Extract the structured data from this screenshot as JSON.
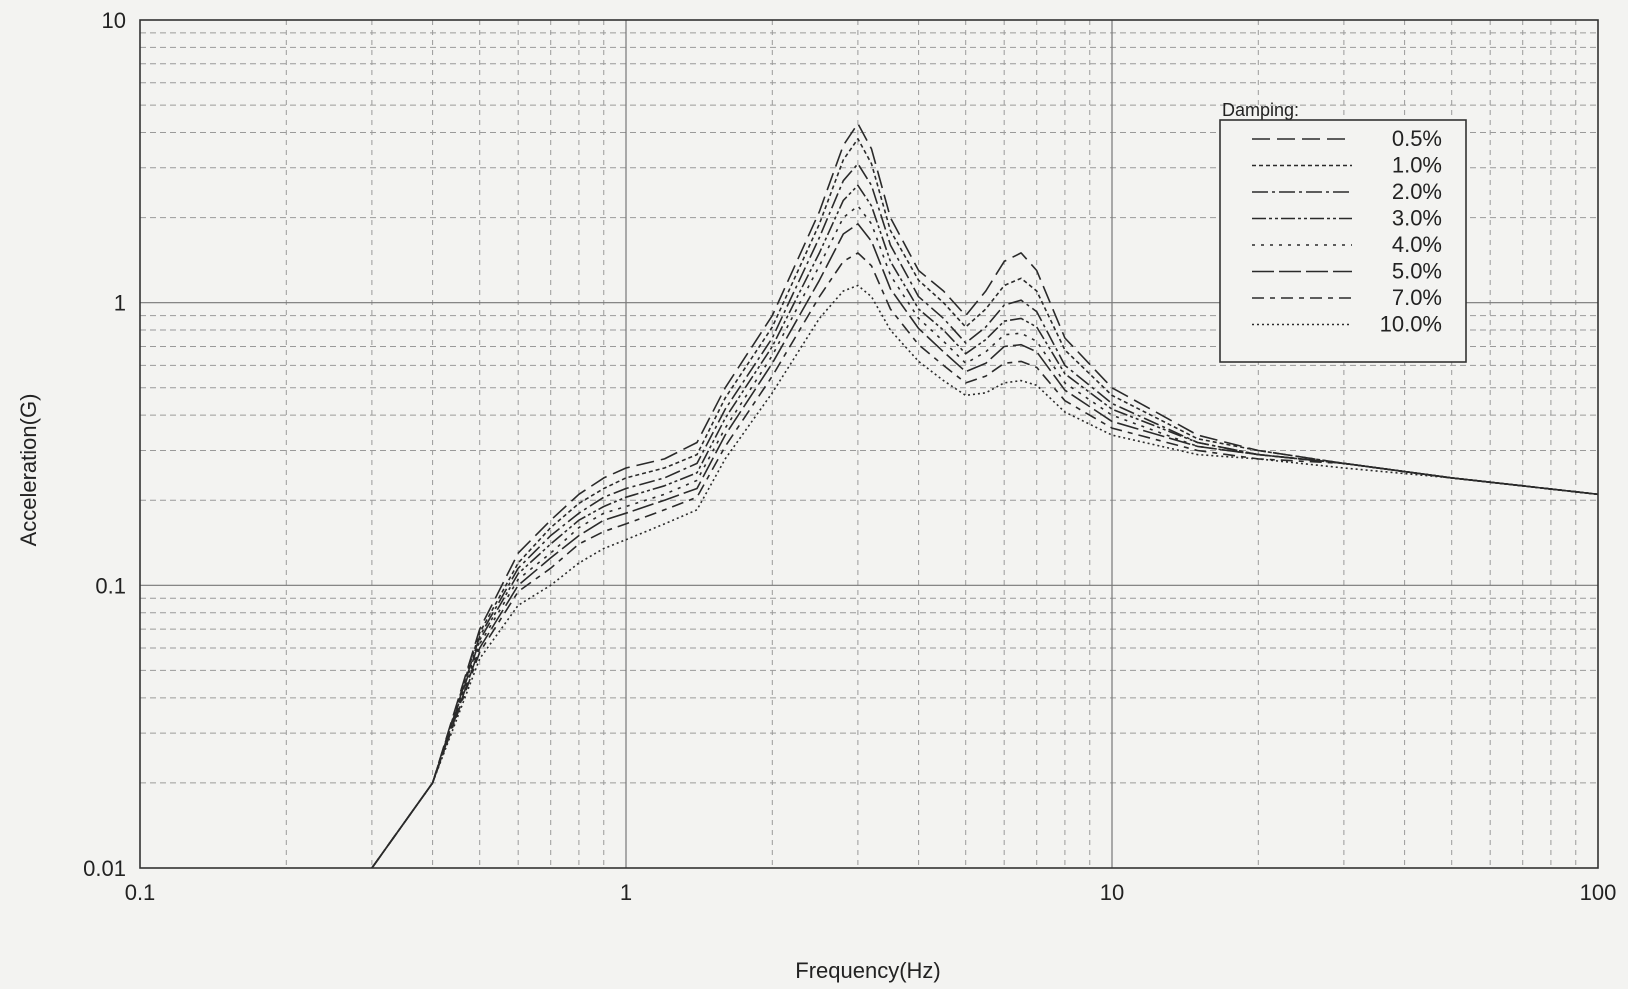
{
  "chart_data": {
    "type": "line",
    "title": "",
    "xlabel": "Frequency(Hz)",
    "ylabel": "Acceleration(G)",
    "xscale": "log",
    "yscale": "log",
    "xlim": [
      0.1,
      100
    ],
    "ylim": [
      0.01,
      10
    ],
    "x_tick_labels": [
      "0.1",
      "1",
      "10",
      "100"
    ],
    "y_tick_labels": [
      "0.01",
      "0.1",
      "1",
      "10"
    ],
    "grid": true,
    "legend": {
      "title": "Damping:",
      "placement": "top-right"
    },
    "x": [
      0.3,
      0.4,
      0.5,
      0.6,
      0.7,
      0.8,
      0.9,
      1.0,
      1.2,
      1.4,
      1.6,
      2.0,
      2.5,
      2.8,
      3.0,
      3.2,
      3.5,
      4.0,
      4.5,
      5.0,
      5.5,
      6.0,
      6.5,
      7.0,
      8.0,
      10.0,
      15.0,
      20.0,
      30.0,
      50.0,
      100.0
    ],
    "series": [
      {
        "name": "0.5%",
        "dash": "18,7",
        "values": [
          0.01,
          0.02,
          0.07,
          0.13,
          0.17,
          0.21,
          0.24,
          0.26,
          0.28,
          0.32,
          0.5,
          0.9,
          2.1,
          3.6,
          4.3,
          3.5,
          2.0,
          1.3,
          1.1,
          0.9,
          1.1,
          1.4,
          1.5,
          1.3,
          0.75,
          0.5,
          0.34,
          0.3,
          0.27,
          0.24,
          0.21
        ]
      },
      {
        "name": "1.0%",
        "dash": "4,3",
        "values": [
          0.01,
          0.02,
          0.068,
          0.12,
          0.16,
          0.195,
          0.22,
          0.24,
          0.26,
          0.29,
          0.46,
          0.82,
          1.9,
          3.2,
          3.8,
          3.1,
          1.8,
          1.2,
          1.0,
          0.82,
          0.95,
          1.15,
          1.22,
          1.1,
          0.68,
          0.47,
          0.33,
          0.3,
          0.27,
          0.24,
          0.21
        ]
      },
      {
        "name": "2.0%",
        "dash": "16,4,3,4",
        "values": [
          0.01,
          0.02,
          0.066,
          0.115,
          0.15,
          0.18,
          0.205,
          0.22,
          0.24,
          0.27,
          0.42,
          0.75,
          1.7,
          2.7,
          3.1,
          2.6,
          1.6,
          1.05,
          0.88,
          0.72,
          0.82,
          0.98,
          1.02,
          0.93,
          0.6,
          0.44,
          0.32,
          0.29,
          0.27,
          0.24,
          0.21
        ]
      },
      {
        "name": "3.0%",
        "dash": "14,3,3,3,3,3",
        "values": [
          0.01,
          0.02,
          0.064,
          0.11,
          0.14,
          0.17,
          0.19,
          0.205,
          0.225,
          0.25,
          0.39,
          0.7,
          1.5,
          2.3,
          2.6,
          2.2,
          1.4,
          0.95,
          0.8,
          0.66,
          0.74,
          0.86,
          0.88,
          0.82,
          0.56,
          0.42,
          0.32,
          0.29,
          0.27,
          0.24,
          0.21
        ]
      },
      {
        "name": "4.0%",
        "dash": "3,6",
        "values": [
          0.01,
          0.02,
          0.062,
          0.105,
          0.13,
          0.16,
          0.18,
          0.19,
          0.21,
          0.235,
          0.36,
          0.65,
          1.35,
          2.0,
          2.2,
          1.9,
          1.25,
          0.88,
          0.73,
          0.61,
          0.67,
          0.77,
          0.78,
          0.73,
          0.52,
          0.4,
          0.31,
          0.29,
          0.27,
          0.24,
          0.21
        ]
      },
      {
        "name": "5.0%",
        "dash": "22,5",
        "values": [
          0.01,
          0.02,
          0.06,
          0.1,
          0.125,
          0.15,
          0.17,
          0.18,
          0.2,
          0.22,
          0.34,
          0.61,
          1.2,
          1.75,
          1.9,
          1.65,
          1.12,
          0.81,
          0.67,
          0.57,
          0.61,
          0.7,
          0.71,
          0.67,
          0.49,
          0.38,
          0.31,
          0.29,
          0.27,
          0.24,
          0.21
        ]
      },
      {
        "name": "7.0%",
        "dash": "12,6,5,6",
        "values": [
          0.01,
          0.02,
          0.058,
          0.095,
          0.115,
          0.14,
          0.155,
          0.165,
          0.185,
          0.205,
          0.31,
          0.55,
          1.05,
          1.4,
          1.5,
          1.35,
          0.95,
          0.71,
          0.6,
          0.52,
          0.55,
          0.61,
          0.62,
          0.59,
          0.45,
          0.36,
          0.3,
          0.28,
          0.27,
          0.24,
          0.21
        ]
      },
      {
        "name": "10.0%",
        "dash": "2,3",
        "values": [
          0.01,
          0.02,
          0.055,
          0.085,
          0.1,
          0.12,
          0.135,
          0.145,
          0.165,
          0.185,
          0.28,
          0.48,
          0.88,
          1.1,
          1.15,
          1.05,
          0.8,
          0.62,
          0.53,
          0.47,
          0.48,
          0.52,
          0.53,
          0.51,
          0.41,
          0.34,
          0.29,
          0.28,
          0.26,
          0.24,
          0.21
        ]
      }
    ]
  }
}
